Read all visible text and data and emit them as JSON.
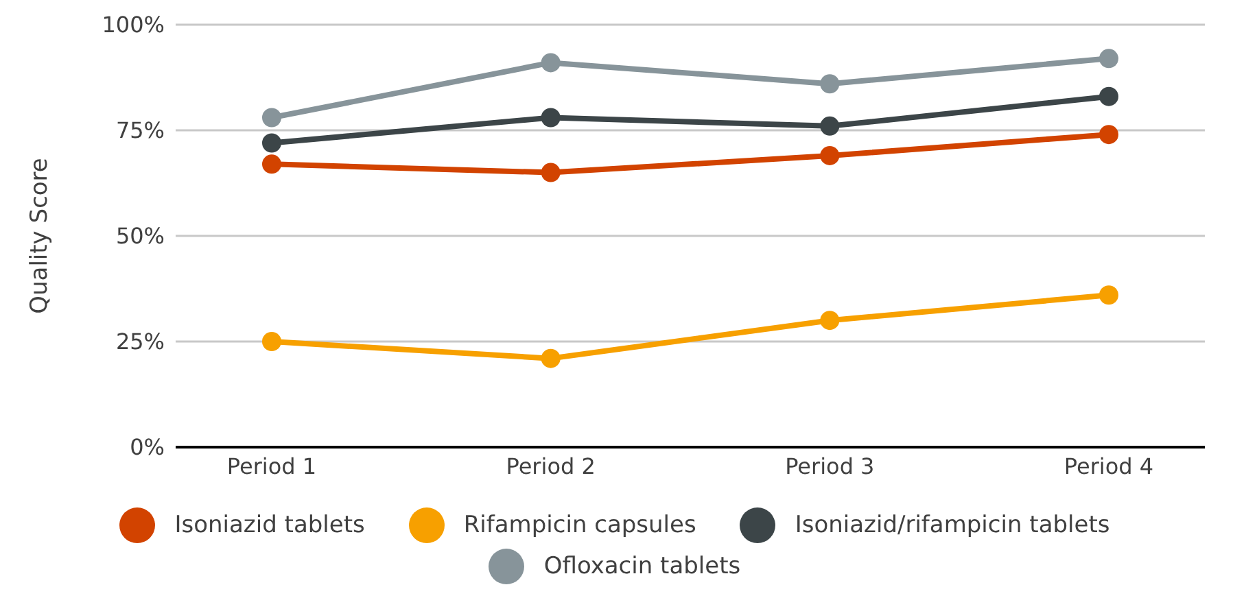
{
  "chart_data": {
    "type": "line",
    "ylabel": "Quality Score",
    "categories": [
      "Period 1",
      "Period 2",
      "Period 3",
      "Period 4"
    ],
    "series": [
      {
        "name": "Isoniazid tablets",
        "color": "#d24300",
        "values": [
          67,
          65,
          69,
          74
        ]
      },
      {
        "name": "Rifampicin capsules",
        "color": "#f7a000",
        "values": [
          25,
          21,
          30,
          36
        ]
      },
      {
        "name": "Isoniazid/rifampicin tablets",
        "color": "#3c4548",
        "values": [
          72,
          78,
          76,
          83
        ]
      },
      {
        "name": "Ofloxacin tablets",
        "color": "#87949a",
        "values": [
          78,
          91,
          86,
          92
        ]
      }
    ],
    "ylim": [
      0,
      100
    ],
    "yticks": [
      {
        "value": 0,
        "label": "0%"
      },
      {
        "value": 25,
        "label": "25%"
      },
      {
        "value": 50,
        "label": "50%"
      },
      {
        "value": 75,
        "label": "75%"
      },
      {
        "value": 100,
        "label": "100%"
      }
    ],
    "grid": "y",
    "legend": "bottom",
    "marker": "circle",
    "line_style": "solid"
  }
}
